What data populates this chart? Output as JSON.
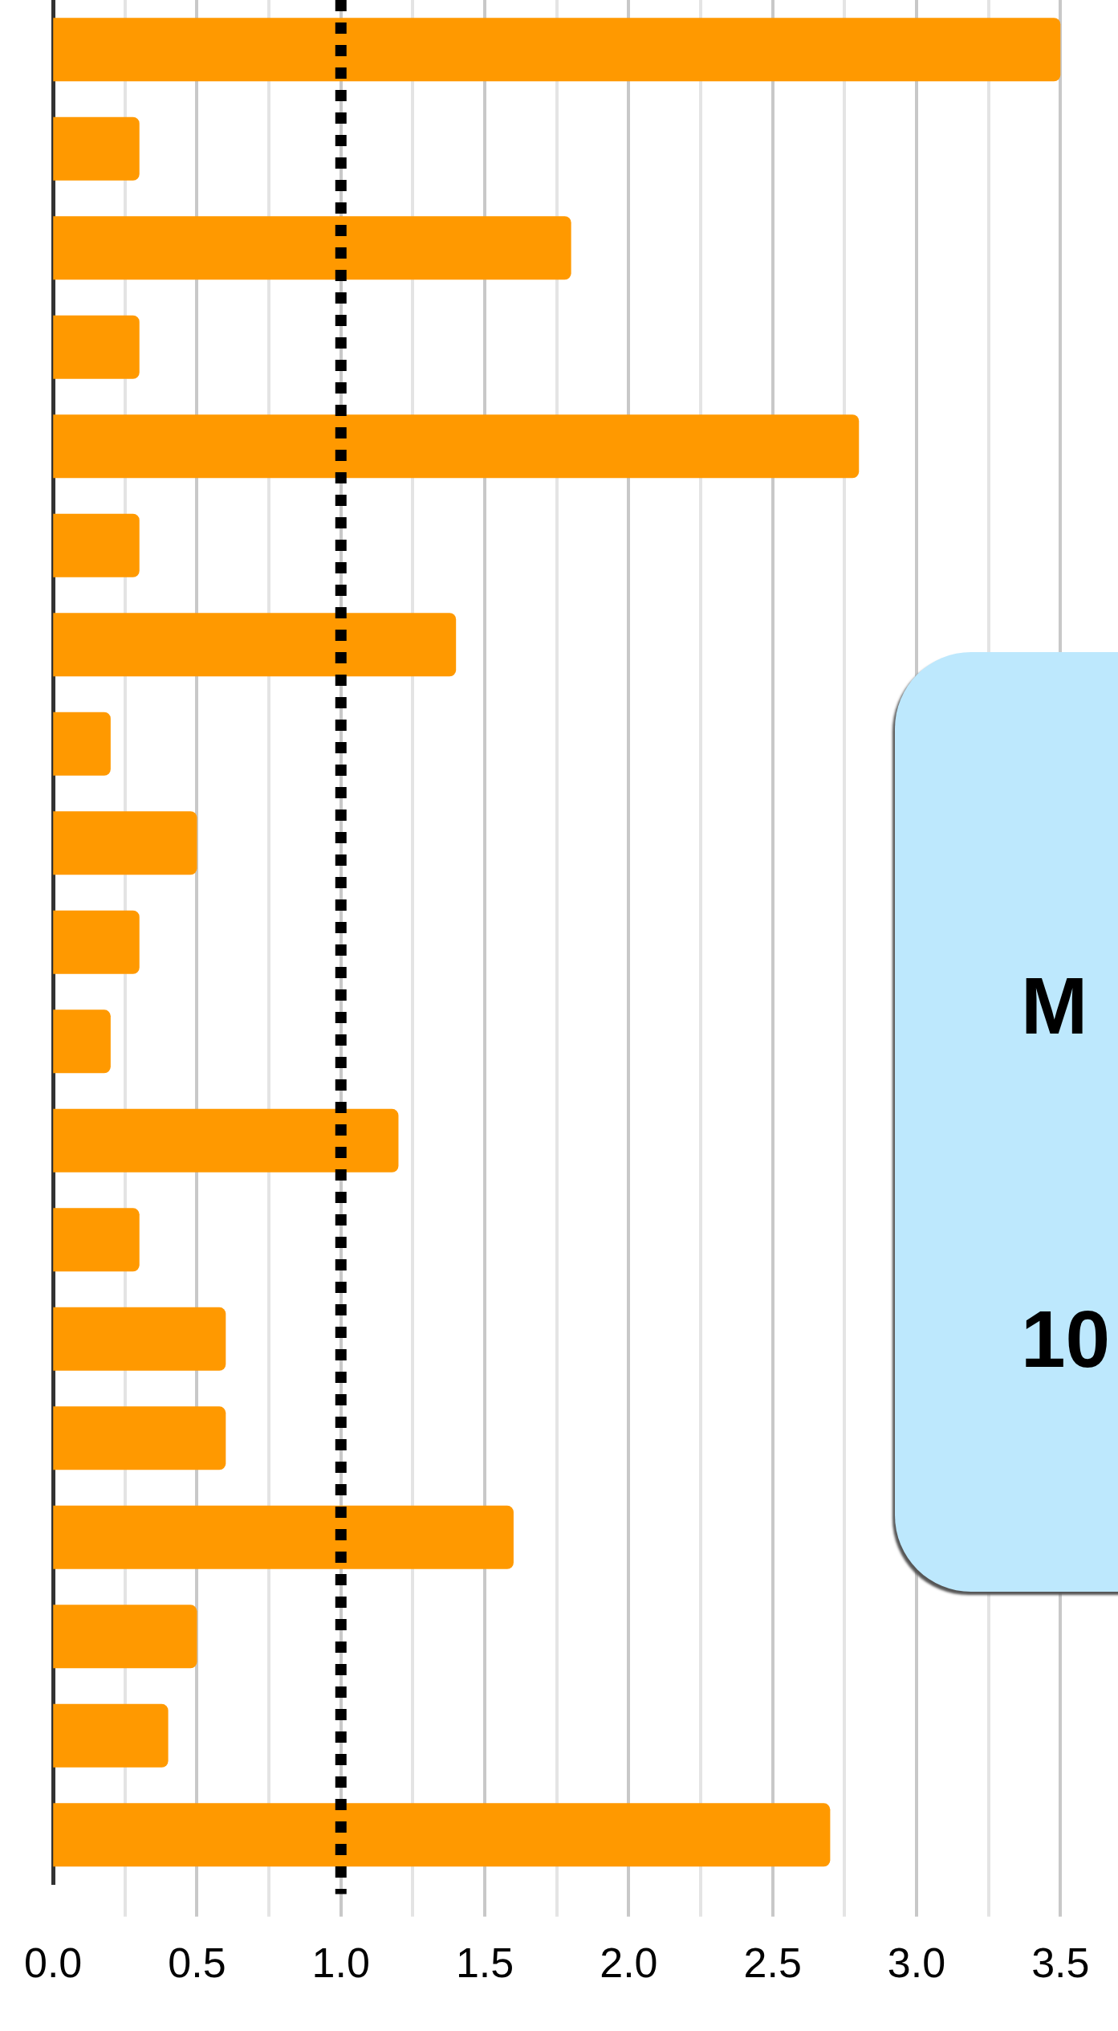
{
  "chart_data": {
    "type": "bar",
    "orientation": "horizontal",
    "categories": [
      null,
      null,
      null,
      null,
      null,
      null,
      null,
      null,
      null,
      null,
      null,
      null,
      null,
      null,
      null,
      null,
      null,
      null,
      null
    ],
    "values": [
      3.5,
      0.3,
      1.8,
      0.3,
      2.8,
      0.3,
      1.4,
      0.2,
      0.5,
      0.3,
      0.2,
      1.2,
      0.3,
      0.6,
      0.6,
      1.6,
      0.5,
      0.4,
      2.7
    ],
    "color": "#ff9900",
    "xlim": [
      0,
      3.7
    ],
    "xticks": [
      {
        "value": 0,
        "label": "0.0"
      },
      {
        "value": 0.25,
        "label": null
      },
      0.5,
      {
        "value": 0.75,
        "label": null
      },
      {
        "value": 1,
        "label": "1.0"
      },
      {
        "value": 1.25,
        "label": null
      },
      1.5,
      {
        "value": 1.75,
        "label": null
      },
      {
        "value": 2,
        "label": "2.0"
      },
      {
        "value": 2.25,
        "label": null
      },
      2.5,
      {
        "value": 2.75,
        "label": null
      },
      {
        "value": 3,
        "label": "3.0"
      },
      {
        "value": 3.25,
        "label": null
      },
      3.5
    ],
    "grid": "x",
    "ref_lines": [
      {
        "axis": "x",
        "value": 1,
        "color": "#000000",
        "line_style": "dotted"
      }
    ],
    "annotations": [
      "M",
      "10"
    ]
  }
}
